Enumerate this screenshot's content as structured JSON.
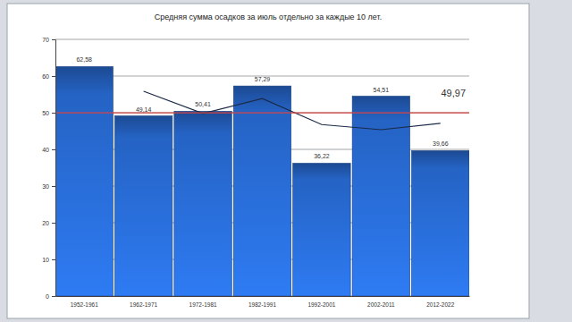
{
  "chart_data": {
    "type": "bar",
    "title": "Средняя сумма осадков за июль отдельно за каждые 10 лет.",
    "categories": [
      "1952-1961",
      "1962-1971",
      "1972-1981",
      "1982-1991",
      "1992-2001",
      "2002-2011",
      "2012-2022"
    ],
    "series": [
      {
        "type": "bar",
        "color": "#2563c4",
        "values": [
          62.58,
          49.14,
          50.41,
          57.29,
          36.22,
          54.51,
          39.66
        ],
        "value_labels": [
          "62,58",
          "49,14",
          "50,41",
          "57,29",
          "36,22",
          "54,51",
          "39,66"
        ]
      },
      {
        "type": "line",
        "color": "#1b2a48",
        "values": [
          null,
          55.86,
          49.78,
          53.85,
          46.76,
          45.37,
          47.09
        ]
      }
    ],
    "annotations": [
      {
        "y": 49.97,
        "label": "49,97",
        "color": "#d64545"
      }
    ],
    "ylim": [
      0,
      70
    ],
    "yticks": [
      0,
      10,
      20,
      30,
      40,
      50,
      60,
      70
    ],
    "grid": true,
    "data_labels": true
  }
}
